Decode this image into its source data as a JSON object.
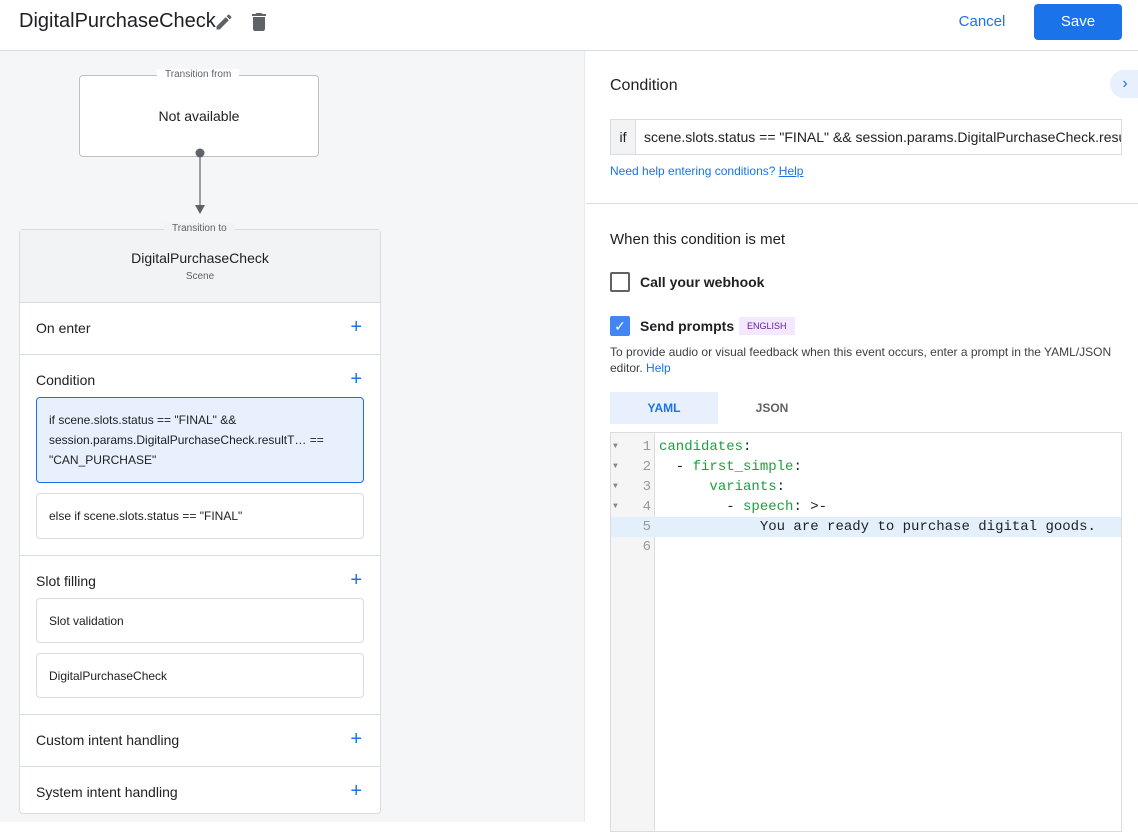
{
  "header": {
    "title": "DigitalPurchaseCheck",
    "cancel_label": "Cancel",
    "save_label": "Save"
  },
  "flow": {
    "from_legend": "Transition from",
    "from_value": "Not available",
    "to_legend": "Transition to",
    "scene_name": "DigitalPurchaseCheck",
    "scene_type": "Scene",
    "sections": {
      "on_enter": "On enter",
      "condition": "Condition",
      "conditions": [
        "if scene.slots.status == \"FINAL\" && session.params.DigitalPurchaseCheck.resultT… == \"CAN_PURCHASE\"",
        "else if scene.slots.status == \"FINAL\""
      ],
      "slot_filling": "Slot filling",
      "slots": [
        "Slot validation",
        "DigitalPurchaseCheck"
      ],
      "custom_intent": "Custom intent handling",
      "system_intent": "System intent handling"
    }
  },
  "panel": {
    "condition_title": "Condition",
    "if_label": "if",
    "condition_value": "scene.slots.status == \"FINAL\" && session.params.DigitalPurchaseCheck.resultType == \"CAN_PURCHASE\"",
    "help_text": "Need help entering conditions?",
    "help_link": "Help",
    "met_title": "When this condition is met",
    "webhook_label": "Call your webhook",
    "webhook_checked": false,
    "prompts_label": "Send prompts",
    "prompts_checked": true,
    "lang_badge": "ENGLISH",
    "prompts_desc": "To provide audio or visual feedback when this event occurs, enter a prompt in the YAML/JSON editor.",
    "prompts_help": "Help",
    "tabs": [
      "YAML",
      "JSON"
    ],
    "active_tab": "YAML",
    "code_lines": [
      {
        "n": "1",
        "indent": "",
        "key": "candidates",
        "rest": ":"
      },
      {
        "n": "2",
        "indent": "  - ",
        "key": "first_simple",
        "rest": ":"
      },
      {
        "n": "3",
        "indent": "      ",
        "key": "variants",
        "rest": ":"
      },
      {
        "n": "4",
        "indent": "        - ",
        "key": "speech",
        "rest": ": >-"
      },
      {
        "n": "5",
        "indent": "            ",
        "key": "",
        "rest": "You are ready to purchase digital goods."
      },
      {
        "n": "6",
        "indent": "",
        "key": "",
        "rest": ""
      }
    ]
  },
  "colors": {
    "accent": "#1a73e8",
    "code_key": "#1e9e3e",
    "badge_bg": "#f3e8fd"
  }
}
